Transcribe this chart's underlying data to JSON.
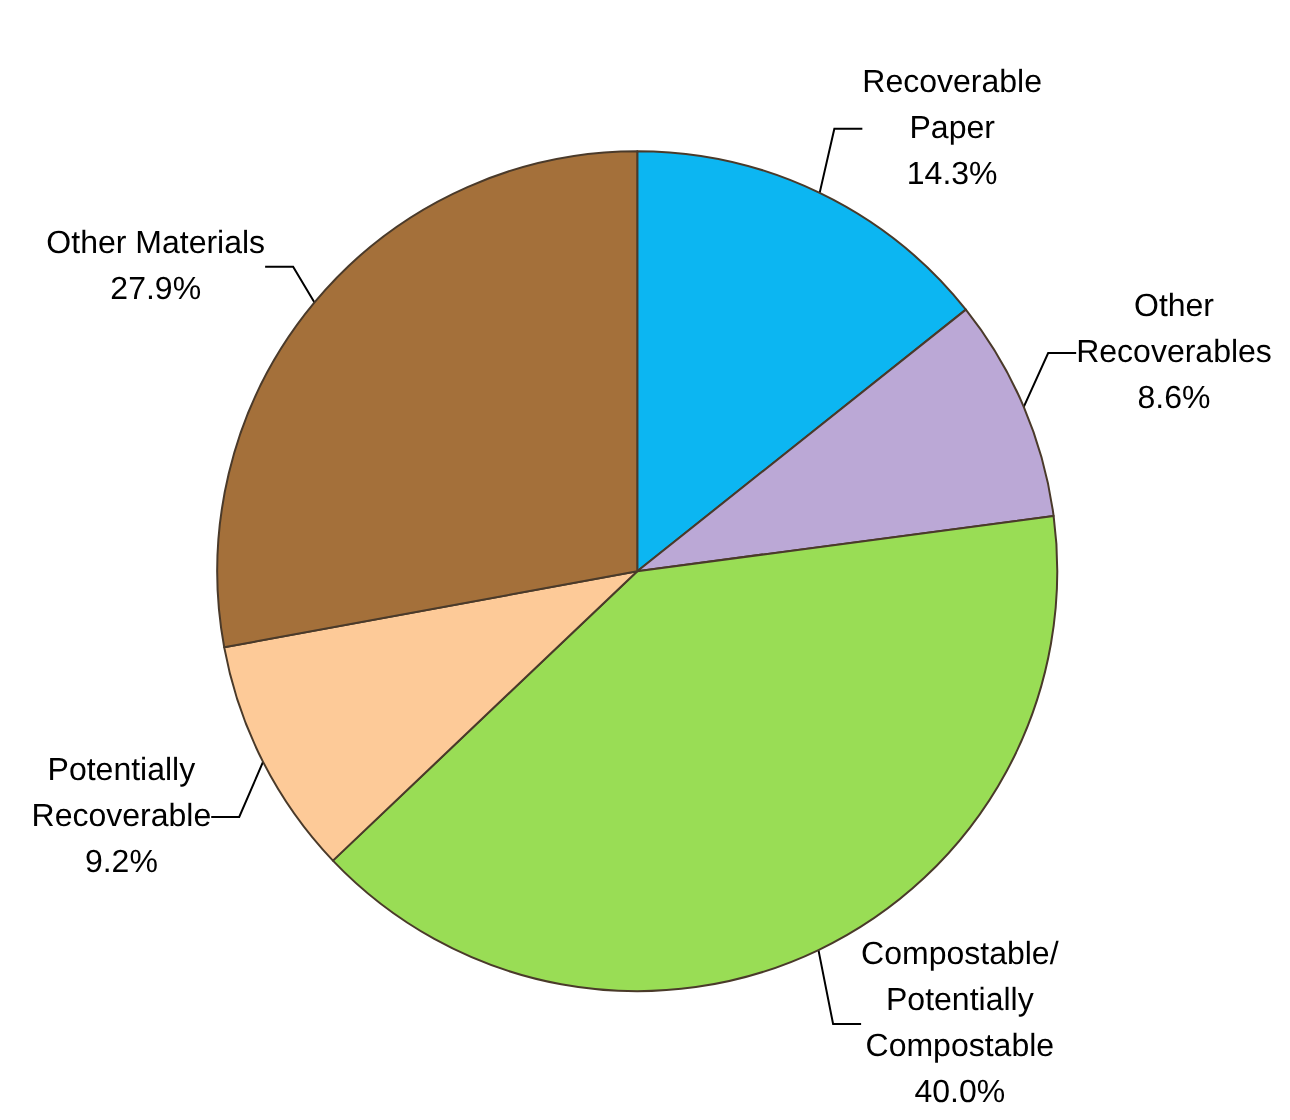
{
  "chart_data": {
    "type": "pie",
    "categories": [
      "Recoverable Paper",
      "Other Recoverables",
      "Compostable/ Potentially Compostable",
      "Potentially Recoverable",
      "Other Materials"
    ],
    "values": [
      14.3,
      8.6,
      40.0,
      9.2,
      27.9
    ],
    "value_labels": [
      "14.3%",
      "8.6%",
      "40.0%",
      "9.2%",
      "27.9%"
    ],
    "colors": [
      "#0cb6f2",
      "#bba8d6",
      "#99dd55",
      "#fdca98",
      "#a4703a"
    ],
    "legend": false
  }
}
